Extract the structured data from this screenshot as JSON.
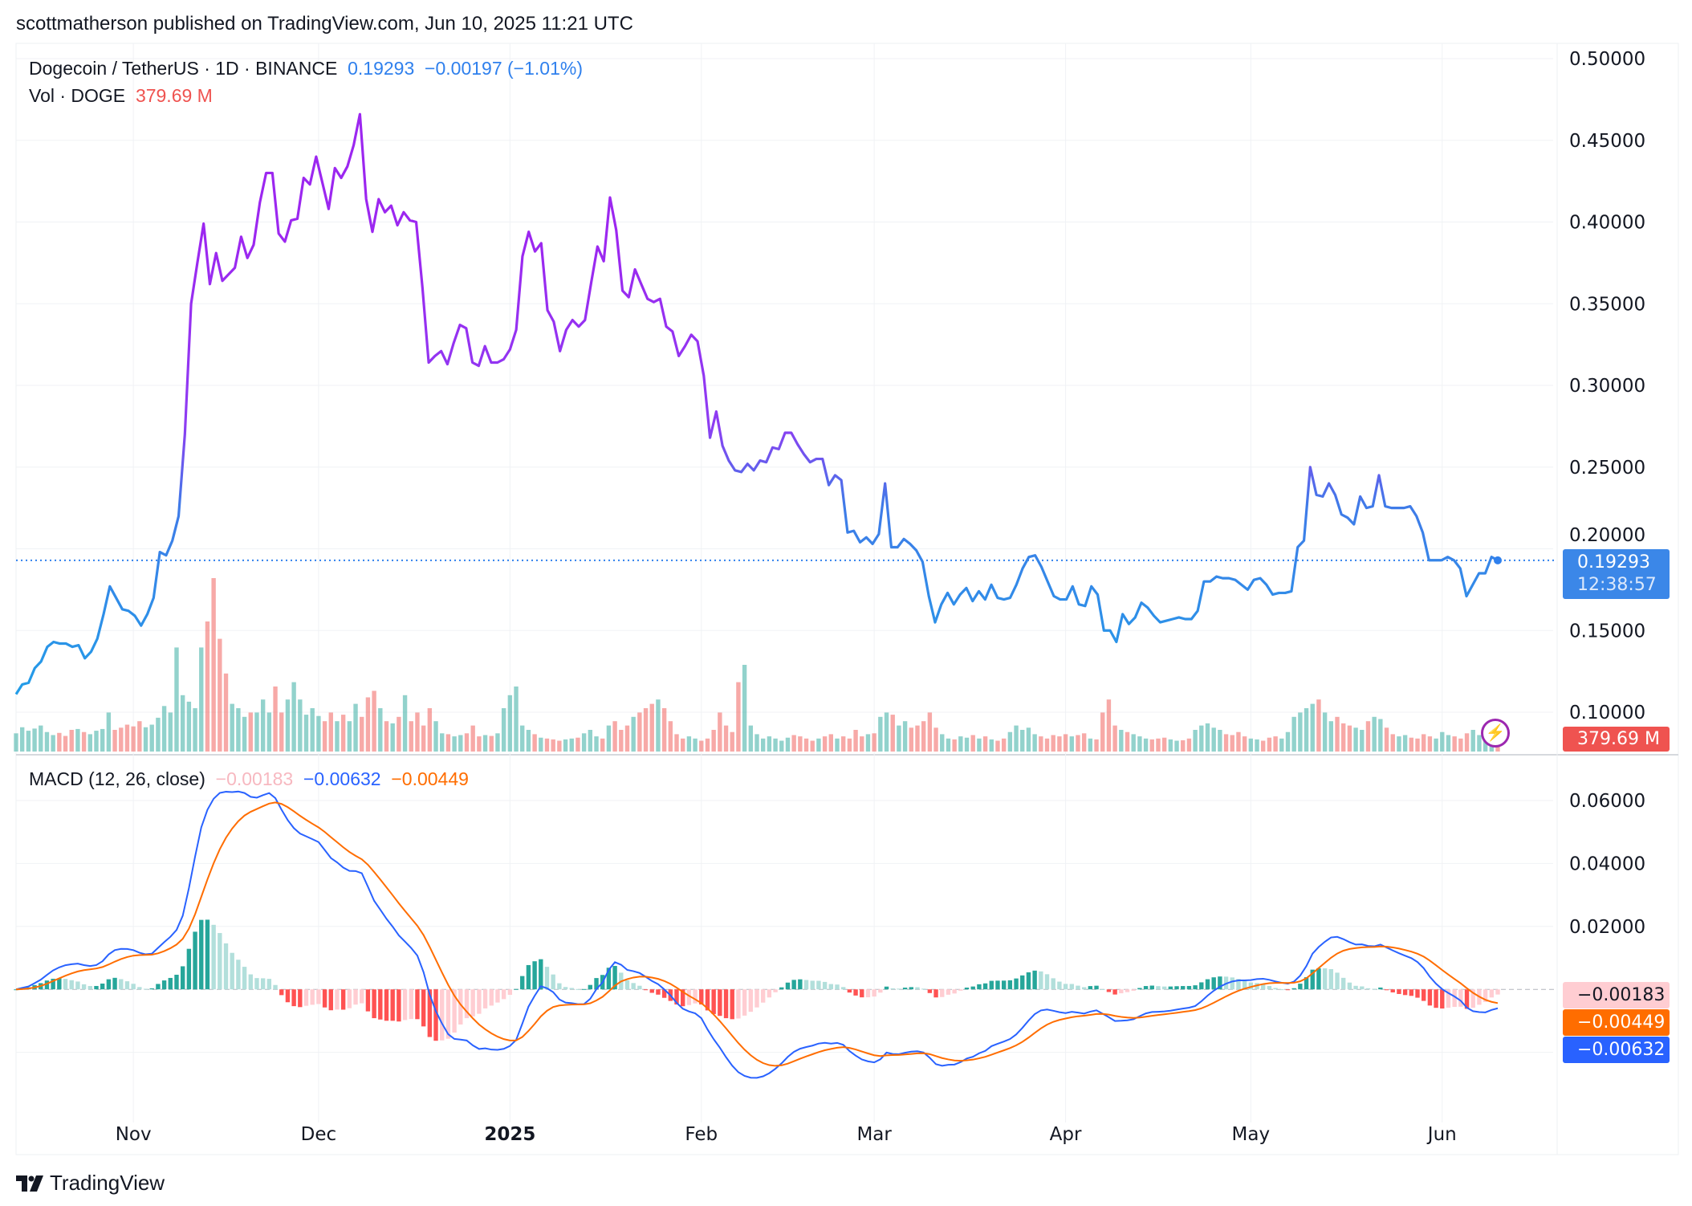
{
  "header": {
    "publisher": "scottmatherson published on TradingView.com, Jun 10, 2025 11:21 UTC"
  },
  "legend": {
    "symbol": "Dogecoin / TetherUS · 1D · BINANCE",
    "price": "0.19293",
    "change": "−0.00197 (−1.01%)",
    "vol_label": "Vol · DOGE",
    "vol_value": "379.69 M",
    "macd_label": "MACD (12, 26, close)",
    "macd_hist": "−0.00183",
    "macd_line": "−0.00632",
    "macd_signal": "−0.00449"
  },
  "tags": {
    "price": "0.19293",
    "countdown": "12:38:57",
    "volume": "379.69 M",
    "hist": "−0.00183",
    "signal": "−0.00449",
    "macd": "−0.00632"
  },
  "colors": {
    "up": "#26a69a",
    "down": "#ef5350",
    "price_top": "#9c27f0",
    "price_bottom": "#2196f3",
    "macd": "#2962ff",
    "signal": "#ff6d00"
  },
  "footer": {
    "brand": "TradingView"
  },
  "chart_data": {
    "type": "line",
    "title": "Dogecoin / TetherUS · 1D · BINANCE",
    "x_start": "2024-10-13",
    "x_end": "2025-06-10",
    "x_ticks": [
      "Nov",
      "Dec",
      "2025",
      "Feb",
      "Mar",
      "Apr",
      "May",
      "Jun"
    ],
    "x_tick_days": [
      19,
      49,
      80,
      111,
      139,
      170,
      200,
      231
    ],
    "price_ticks": [
      "0.50000",
      "0.45000",
      "0.40000",
      "0.35000",
      "0.30000",
      "0.25000",
      "0.20000",
      "0.15000",
      "0.10000"
    ],
    "price_ylim": [
      0.1,
      0.5
    ],
    "macd_ticks": [
      "0.06000",
      "0.04000",
      "0.02000"
    ],
    "macd_ylim": [
      -0.025,
      0.06
    ],
    "close": [
      0.111,
      0.117,
      0.118,
      0.127,
      0.131,
      0.14,
      0.143,
      0.142,
      0.142,
      0.14,
      0.141,
      0.133,
      0.137,
      0.145,
      0.16,
      0.177,
      0.17,
      0.163,
      0.162,
      0.159,
      0.153,
      0.16,
      0.17,
      0.198,
      0.196,
      0.205,
      0.22,
      0.27,
      0.35,
      0.375,
      0.399,
      0.362,
      0.381,
      0.364,
      0.368,
      0.372,
      0.391,
      0.378,
      0.386,
      0.412,
      0.43,
      0.43,
      0.393,
      0.388,
      0.401,
      0.402,
      0.427,
      0.423,
      0.44,
      0.424,
      0.408,
      0.433,
      0.427,
      0.434,
      0.447,
      0.466,
      0.414,
      0.394,
      0.414,
      0.406,
      0.41,
      0.398,
      0.406,
      0.401,
      0.4,
      0.36,
      0.314,
      0.318,
      0.321,
      0.313,
      0.326,
      0.337,
      0.335,
      0.314,
      0.312,
      0.324,
      0.314,
      0.314,
      0.316,
      0.322,
      0.334,
      0.379,
      0.394,
      0.382,
      0.387,
      0.346,
      0.339,
      0.321,
      0.334,
      0.34,
      0.336,
      0.34,
      0.363,
      0.385,
      0.376,
      0.415,
      0.395,
      0.358,
      0.354,
      0.371,
      0.362,
      0.353,
      0.351,
      0.353,
      0.336,
      0.333,
      0.318,
      0.324,
      0.331,
      0.327,
      0.306,
      0.268,
      0.284,
      0.263,
      0.254,
      0.248,
      0.247,
      0.252,
      0.248,
      0.254,
      0.253,
      0.262,
      0.261,
      0.271,
      0.271,
      0.264,
      0.258,
      0.253,
      0.255,
      0.255,
      0.239,
      0.245,
      0.242,
      0.21,
      0.211,
      0.204,
      0.207,
      0.203,
      0.209,
      0.24,
      0.201,
      0.201,
      0.206,
      0.203,
      0.199,
      0.192,
      0.171,
      0.155,
      0.166,
      0.173,
      0.166,
      0.172,
      0.176,
      0.168,
      0.174,
      0.169,
      0.178,
      0.17,
      0.169,
      0.17,
      0.178,
      0.188,
      0.195,
      0.196,
      0.189,
      0.18,
      0.171,
      0.169,
      0.169,
      0.177,
      0.166,
      0.165,
      0.177,
      0.172,
      0.15,
      0.15,
      0.143,
      0.16,
      0.154,
      0.158,
      0.167,
      0.164,
      0.159,
      0.155,
      0.156,
      0.157,
      0.158,
      0.157,
      0.157,
      0.162,
      0.18,
      0.18,
      0.183,
      0.182,
      0.182,
      0.181,
      0.178,
      0.175,
      0.181,
      0.182,
      0.178,
      0.172,
      0.173,
      0.173,
      0.174,
      0.201,
      0.205,
      0.25,
      0.233,
      0.232,
      0.24,
      0.233,
      0.221,
      0.219,
      0.215,
      0.232,
      0.225,
      0.226,
      0.245,
      0.226,
      0.225,
      0.225,
      0.225,
      0.226,
      0.22,
      0.21,
      0.193,
      0.193,
      0.193,
      0.195,
      0.193,
      0.188,
      0.171,
      0.178,
      0.185,
      0.185,
      0.195,
      0.193
    ],
    "volume_m": [
      420,
      560,
      480,
      530,
      600,
      450,
      380,
      430,
      360,
      500,
      520,
      450,
      400,
      480,
      520,
      900,
      500,
      550,
      620,
      580,
      700,
      560,
      620,
      780,
      1050,
      900,
      2400,
      1300,
      1150,
      1000,
      2400,
      3000,
      4000,
      2600,
      1800,
      1100,
      1000,
      800,
      900,
      900,
      1200,
      900,
      1500,
      900,
      1200,
      1600,
      1200,
      850,
      1000,
      820,
      700,
      900,
      700,
      850,
      700,
      1100,
      800,
      1250,
      1400,
      1000,
      700,
      650,
      800,
      1300,
      700,
      900,
      600,
      1000,
      700,
      420,
      400,
      350,
      380,
      420,
      600,
      350,
      380,
      360,
      420,
      1000,
      1300,
      1500,
      600,
      500,
      400,
      320,
      300,
      280,
      250,
      280,
      300,
      320,
      420,
      500,
      350,
      300,
      600,
      700,
      500,
      600,
      800,
      900,
      1000,
      1100,
      1200,
      1000,
      700,
      400,
      300,
      350,
      300,
      250,
      300,
      500,
      900,
      600,
      450,
      1600,
      2000,
      600,
      400,
      300,
      350,
      300,
      250,
      320,
      380,
      350,
      300,
      250,
      300,
      350,
      400,
      300,
      350,
      300,
      500,
      350,
      400,
      420,
      800,
      900,
      850,
      600,
      700,
      550,
      600,
      700,
      900,
      550,
      400,
      300,
      280,
      350,
      320,
      380,
      300,
      350,
      280,
      250,
      300,
      450,
      600,
      500,
      550,
      400,
      350,
      300,
      380,
      350,
      400,
      350,
      380,
      420,
      300,
      280,
      900,
      1200,
      600,
      500,
      450,
      400,
      350,
      300,
      280,
      300,
      320,
      280,
      250,
      260,
      300,
      500,
      600,
      650,
      550,
      500,
      400,
      380,
      450,
      350,
      300,
      280,
      250,
      320,
      350,
      300,
      450,
      800,
      900,
      1000,
      1100,
      1200,
      900,
      700,
      800,
      650,
      600,
      550,
      500,
      700,
      800,
      750,
      550,
      400,
      350,
      380,
      320,
      300,
      400,
      350,
      300,
      450,
      380,
      350,
      300,
      420,
      500,
      380,
      400,
      350,
      380
    ],
    "last_close": 0.19293,
    "macd_params": [
      12,
      26,
      9
    ],
    "last_macd": -0.00632,
    "last_signal": -0.00449,
    "last_hist": -0.00183
  }
}
